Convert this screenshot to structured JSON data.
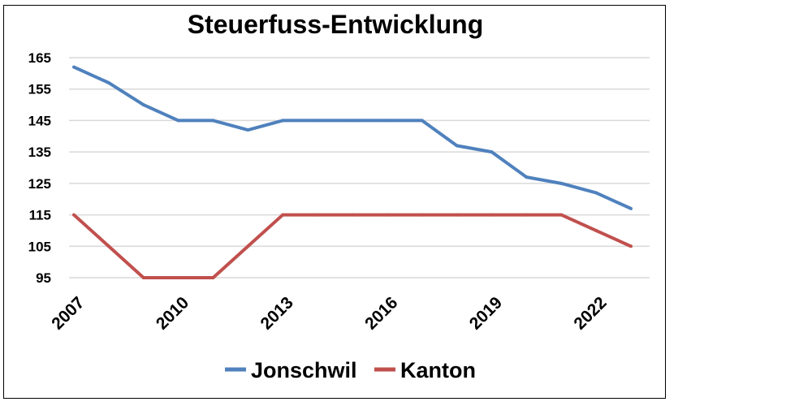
{
  "chart_data": {
    "type": "line",
    "title": "Steuerfuss-Entwicklung",
    "x": [
      2007,
      2008,
      2009,
      2010,
      2011,
      2012,
      2013,
      2014,
      2015,
      2016,
      2017,
      2018,
      2019,
      2020,
      2021,
      2022,
      2023
    ],
    "x_tick_labels": [
      "2007",
      "2010",
      "2013",
      "2016",
      "2019",
      "2022"
    ],
    "x_ticks": [
      2007,
      2010,
      2013,
      2016,
      2019,
      2022
    ],
    "xlim": [
      2007,
      2023
    ],
    "y_ticks": [
      95,
      105,
      115,
      125,
      135,
      145,
      155,
      165
    ],
    "y_tick_labels": [
      "95",
      "105",
      "115",
      "125",
      "135",
      "145",
      "155",
      "165"
    ],
    "ylim": [
      95,
      165
    ],
    "grid": true,
    "legend_position": "bottom",
    "series": [
      {
        "name": "Jonschwil",
        "color": "#4f81bd",
        "values": [
          162,
          157,
          150,
          145,
          145,
          142,
          145,
          145,
          145,
          145,
          145,
          137,
          135,
          127,
          125,
          122,
          117
        ]
      },
      {
        "name": "Kanton",
        "color": "#c0504d",
        "values": [
          115,
          105,
          95,
          95,
          95,
          105,
          115,
          115,
          115,
          115,
          115,
          115,
          115,
          115,
          115,
          110,
          105
        ]
      }
    ]
  }
}
